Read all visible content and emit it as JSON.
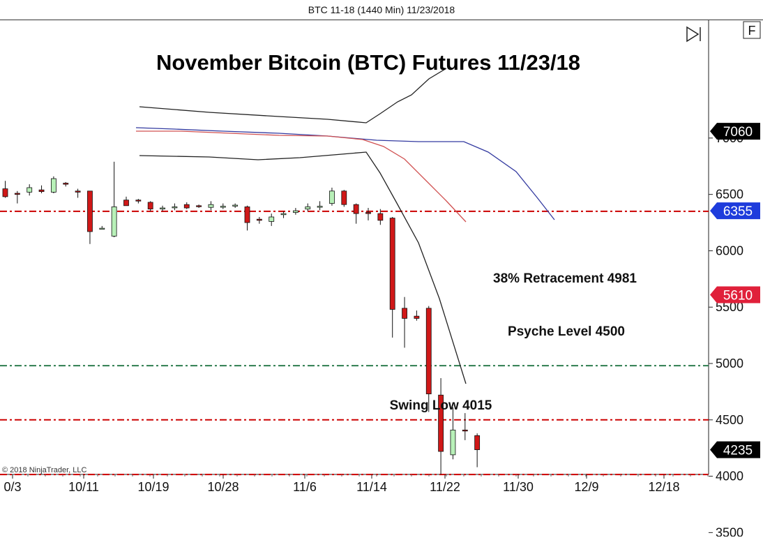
{
  "window_title": "BTC 11-18 (1440 Min)  11/23/2018",
  "copyright": "© 2018 NinjaTrader, LLC",
  "toolbar": {
    "f_button_label": "F"
  },
  "chart_data": {
    "type": "candlestick",
    "title": "November Bitcoin (BTC) Futures 11/23/18",
    "x_tick_labels": [
      "0/3",
      "10/11",
      "10/19",
      "10/28",
      "11/6",
      "11/14",
      "11/22",
      "11/30",
      "12/9",
      "12/18"
    ],
    "y_tick_labels": [
      "3500",
      "4000",
      "4500",
      "5000",
      "5500",
      "6000",
      "6500",
      "7000"
    ],
    "price_markers": [
      {
        "label": "7060",
        "value": 7060,
        "color": "#000000"
      },
      {
        "label": "6355",
        "value": 6355,
        "color": "#1e3cdc"
      },
      {
        "label": "5610",
        "value": 5610,
        "color": "#e0203a"
      },
      {
        "label": "4235",
        "value": 4235,
        "color": "#000000"
      }
    ],
    "horizontal_levels": [
      {
        "value": 6350,
        "color": "#cc0000",
        "style": "dash-dot",
        "label": ""
      },
      {
        "value": 4981,
        "color": "#2e7d4f",
        "style": "dash-dot",
        "label": "38% Retracement 4981"
      },
      {
        "value": 4500,
        "color": "#cc0000",
        "style": "dash-dot",
        "label": "Psyche Level 4500"
      },
      {
        "value": 4015,
        "color": "#cc0000",
        "style": "dash-dot",
        "label": "Swing Low 4015"
      }
    ],
    "candles": [
      {
        "o": 6550,
        "h": 6620,
        "l": 6470,
        "c": 6480
      },
      {
        "o": 6510,
        "h": 6530,
        "l": 6420,
        "c": 6500
      },
      {
        "o": 6520,
        "h": 6590,
        "l": 6490,
        "c": 6560
      },
      {
        "o": 6540,
        "h": 6580,
        "l": 6510,
        "c": 6525
      },
      {
        "o": 6520,
        "h": 6660,
        "l": 6510,
        "c": 6640
      },
      {
        "o": 6600,
        "h": 6610,
        "l": 6570,
        "c": 6590
      },
      {
        "o": 6530,
        "h": 6550,
        "l": 6470,
        "c": 6520
      },
      {
        "o": 6530,
        "h": 6530,
        "l": 6060,
        "c": 6170
      },
      {
        "o": 6200,
        "h": 6220,
        "l": 6190,
        "c": 6200
      },
      {
        "o": 6130,
        "h": 6790,
        "l": 6120,
        "c": 6390
      },
      {
        "o": 6450,
        "h": 6480,
        "l": 6400,
        "c": 6400
      },
      {
        "o": 6450,
        "h": 6460,
        "l": 6420,
        "c": 6445
      },
      {
        "o": 6430,
        "h": 6440,
        "l": 6350,
        "c": 6370
      },
      {
        "o": 6380,
        "h": 6400,
        "l": 6350,
        "c": 6380
      },
      {
        "o": 6390,
        "h": 6420,
        "l": 6360,
        "c": 6390
      },
      {
        "o": 6410,
        "h": 6430,
        "l": 6370,
        "c": 6380
      },
      {
        "o": 6400,
        "h": 6410,
        "l": 6380,
        "c": 6395
      },
      {
        "o": 6385,
        "h": 6440,
        "l": 6360,
        "c": 6410
      },
      {
        "o": 6390,
        "h": 6420,
        "l": 6370,
        "c": 6395
      },
      {
        "o": 6400,
        "h": 6420,
        "l": 6380,
        "c": 6405
      },
      {
        "o": 6390,
        "h": 6400,
        "l": 6180,
        "c": 6250
      },
      {
        "o": 6280,
        "h": 6300,
        "l": 6240,
        "c": 6270
      },
      {
        "o": 6260,
        "h": 6330,
        "l": 6220,
        "c": 6300
      },
      {
        "o": 6320,
        "h": 6350,
        "l": 6290,
        "c": 6330
      },
      {
        "o": 6340,
        "h": 6380,
        "l": 6320,
        "c": 6355
      },
      {
        "o": 6370,
        "h": 6420,
        "l": 6350,
        "c": 6390
      },
      {
        "o": 6390,
        "h": 6440,
        "l": 6360,
        "c": 6395
      },
      {
        "o": 6420,
        "h": 6560,
        "l": 6400,
        "c": 6530
      },
      {
        "o": 6530,
        "h": 6540,
        "l": 6390,
        "c": 6410
      },
      {
        "o": 6410,
        "h": 6420,
        "l": 6240,
        "c": 6330
      },
      {
        "o": 6340,
        "h": 6380,
        "l": 6270,
        "c": 6330
      },
      {
        "o": 6330,
        "h": 6370,
        "l": 6230,
        "c": 6270
      },
      {
        "o": 6290,
        "h": 6300,
        "l": 5230,
        "c": 5480
      },
      {
        "o": 5490,
        "h": 5590,
        "l": 5140,
        "c": 5400
      },
      {
        "o": 5420,
        "h": 5470,
        "l": 5380,
        "c": 5400
      },
      {
        "o": 5490,
        "h": 5510,
        "l": 4570,
        "c": 4730
      },
      {
        "o": 4720,
        "h": 4870,
        "l": 4015,
        "c": 4220
      },
      {
        "o": 4190,
        "h": 4610,
        "l": 4150,
        "c": 4410
      },
      {
        "o": 4410,
        "h": 4560,
        "l": 4320,
        "c": 4405
      },
      {
        "o": 4360,
        "h": 4380,
        "l": 4080,
        "c": 4235
      }
    ]
  }
}
